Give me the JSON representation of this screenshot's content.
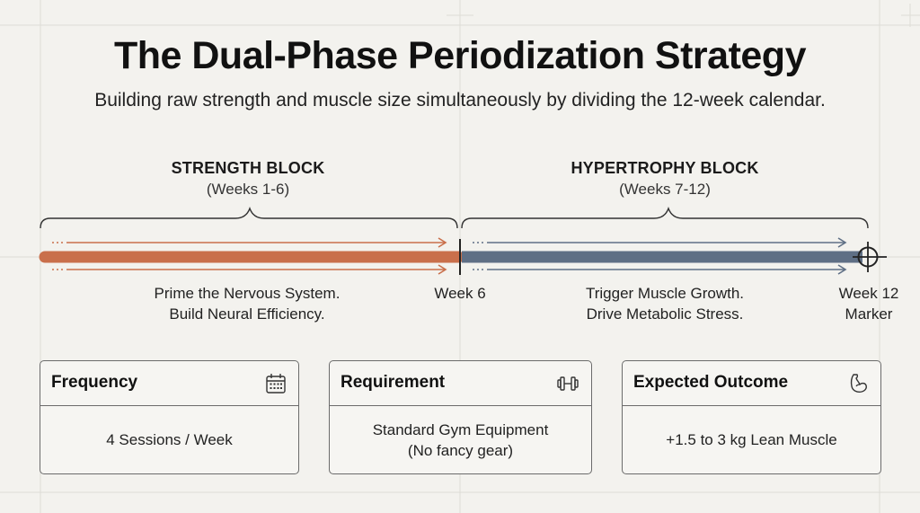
{
  "header": {
    "title": "The Dual-Phase Periodization Strategy",
    "subtitle": "Building raw strength and muscle size simultaneously by dividing the 12-week calendar."
  },
  "phases": [
    {
      "name": "STRENGTH BLOCK",
      "range": "(Weeks 1-6)",
      "note_line1": "Prime the Nervous System.",
      "note_line2": "Build Neural Efficiency.",
      "color": "#c96f4b"
    },
    {
      "name": "HYPERTROPHY BLOCK",
      "range": "(Weeks 7-12)",
      "note_line1": "Trigger Muscle Growth.",
      "note_line2": "Drive Metabolic Stress.",
      "color": "#5f6f85"
    }
  ],
  "markers": {
    "week6": "Week 6",
    "week12_line1": "Week 12",
    "week12_line2": "Marker"
  },
  "cards": [
    {
      "title": "Frequency",
      "icon": "calendar-icon",
      "body_line1": "4 Sessions / Week",
      "body_line2": ""
    },
    {
      "title": "Requirement",
      "icon": "dumbbell-icon",
      "body_line1": "Standard Gym Equipment",
      "body_line2": "(No fancy gear)"
    },
    {
      "title": "Expected Outcome",
      "icon": "flexed-bicep-icon",
      "body_line1": "+1.5 to 3 kg Lean Muscle",
      "body_line2": ""
    }
  ]
}
